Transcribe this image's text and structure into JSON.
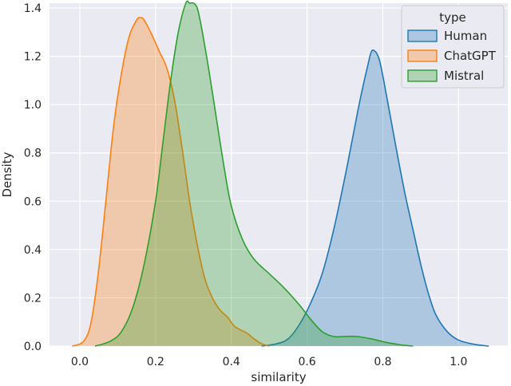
{
  "chart_data": {
    "type": "area",
    "xlabel": "similarity",
    "ylabel": "Density",
    "xlim": [
      -0.08,
      1.13
    ],
    "ylim": [
      0,
      1.42
    ],
    "xticks": [
      "0.0",
      "0.2",
      "0.4",
      "0.6",
      "0.8",
      "1.0"
    ],
    "xtick_values": [
      0,
      0.2,
      0.4,
      0.6,
      0.8,
      1.0
    ],
    "yticks": [
      "0.0",
      "0.2",
      "0.4",
      "0.6",
      "0.8",
      "1.0",
      "1.2",
      "1.4"
    ],
    "ytick_values": [
      0,
      0.2,
      0.4,
      0.6,
      0.8,
      1.0,
      1.2,
      1.4
    ],
    "grid": true,
    "background": "#eaeaf2",
    "legend": {
      "title": "type",
      "placement": "top-right"
    },
    "series": [
      {
        "name": "Human",
        "color": "#1f77b4",
        "points": [
          [
            0.48,
            0.0
          ],
          [
            0.52,
            0.01
          ],
          [
            0.55,
            0.03
          ],
          [
            0.58,
            0.09
          ],
          [
            0.61,
            0.18
          ],
          [
            0.64,
            0.3
          ],
          [
            0.67,
            0.48
          ],
          [
            0.7,
            0.7
          ],
          [
            0.72,
            0.86
          ],
          [
            0.74,
            1.02
          ],
          [
            0.76,
            1.16
          ],
          [
            0.77,
            1.22
          ],
          [
            0.78,
            1.22
          ],
          [
            0.79,
            1.19
          ],
          [
            0.8,
            1.12
          ],
          [
            0.82,
            0.95
          ],
          [
            0.84,
            0.78
          ],
          [
            0.86,
            0.62
          ],
          [
            0.88,
            0.48
          ],
          [
            0.9,
            0.34
          ],
          [
            0.92,
            0.22
          ],
          [
            0.94,
            0.13
          ],
          [
            0.97,
            0.06
          ],
          [
            1.0,
            0.025
          ],
          [
            1.04,
            0.008
          ],
          [
            1.08,
            0.0
          ]
        ]
      },
      {
        "name": "ChatGPT",
        "color": "#ff7f0e",
        "points": [
          [
            -0.02,
            0.0
          ],
          [
            0.01,
            0.02
          ],
          [
            0.03,
            0.1
          ],
          [
            0.05,
            0.32
          ],
          [
            0.07,
            0.62
          ],
          [
            0.09,
            0.92
          ],
          [
            0.11,
            1.13
          ],
          [
            0.13,
            1.28
          ],
          [
            0.15,
            1.35
          ],
          [
            0.16,
            1.36
          ],
          [
            0.17,
            1.35
          ],
          [
            0.19,
            1.29
          ],
          [
            0.21,
            1.22
          ],
          [
            0.23,
            1.15
          ],
          [
            0.25,
            1.02
          ],
          [
            0.27,
            0.82
          ],
          [
            0.29,
            0.6
          ],
          [
            0.31,
            0.42
          ],
          [
            0.33,
            0.28
          ],
          [
            0.35,
            0.2
          ],
          [
            0.37,
            0.15
          ],
          [
            0.39,
            0.12
          ],
          [
            0.41,
            0.08
          ],
          [
            0.44,
            0.055
          ],
          [
            0.46,
            0.03
          ],
          [
            0.48,
            0.01
          ],
          [
            0.5,
            0.0
          ]
        ]
      },
      {
        "name": "Mistral",
        "color": "#2ca02c",
        "points": [
          [
            0.04,
            0.0
          ],
          [
            0.08,
            0.02
          ],
          [
            0.11,
            0.06
          ],
          [
            0.14,
            0.16
          ],
          [
            0.17,
            0.34
          ],
          [
            0.2,
            0.6
          ],
          [
            0.22,
            0.85
          ],
          [
            0.24,
            1.1
          ],
          [
            0.26,
            1.3
          ],
          [
            0.28,
            1.44
          ],
          [
            0.29,
            1.46
          ],
          [
            0.3,
            1.45
          ],
          [
            0.31,
            1.4
          ],
          [
            0.32,
            1.33
          ],
          [
            0.34,
            1.15
          ],
          [
            0.36,
            0.95
          ],
          [
            0.38,
            0.75
          ],
          [
            0.4,
            0.58
          ],
          [
            0.43,
            0.44
          ],
          [
            0.46,
            0.36
          ],
          [
            0.5,
            0.3
          ],
          [
            0.54,
            0.24
          ],
          [
            0.58,
            0.17
          ],
          [
            0.61,
            0.11
          ],
          [
            0.64,
            0.06
          ],
          [
            0.67,
            0.04
          ],
          [
            0.7,
            0.04
          ],
          [
            0.73,
            0.04
          ],
          [
            0.77,
            0.03
          ],
          [
            0.81,
            0.015
          ],
          [
            0.85,
            0.005
          ],
          [
            0.88,
            0.0
          ]
        ]
      }
    ]
  }
}
